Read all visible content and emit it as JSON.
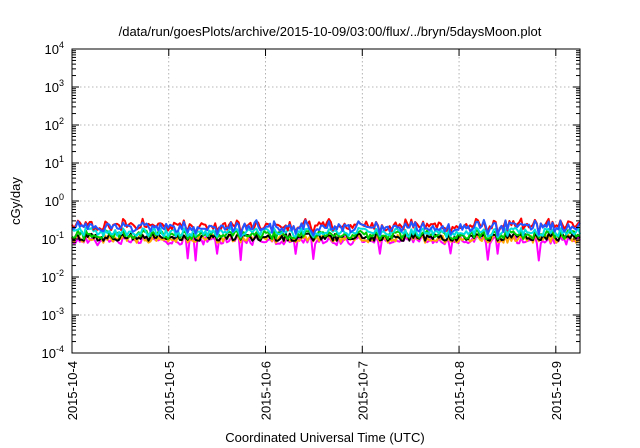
{
  "chart_data": {
    "type": "line",
    "title": "/data/run/goesPlots/archive/2015-10-09/03:00/flux/../bryn/5daysMoon.plot",
    "xlabel": "Coordinated Universal Time (UTC)",
    "ylabel": "cGy/day",
    "yscale": "log",
    "ylim": [
      0.0001,
      10000
    ],
    "xlim": [
      "2015-10-04",
      "2015-10-09 06:00"
    ],
    "grid": true,
    "x_ticks": [
      "2015-10-4",
      "2015-10-5",
      "2015-10-6",
      "2015-10-7",
      "2015-10-8",
      "2015-10-9"
    ],
    "y_ticks": [
      {
        "base": "10",
        "exp": "-4"
      },
      {
        "base": "10",
        "exp": "-3"
      },
      {
        "base": "10",
        "exp": "-2"
      },
      {
        "base": "10",
        "exp": "-1"
      },
      {
        "base": "10",
        "exp": "0"
      },
      {
        "base": "10",
        "exp": "1"
      },
      {
        "base": "10",
        "exp": "2"
      },
      {
        "base": "10",
        "exp": "3"
      },
      {
        "base": "10",
        "exp": "4"
      }
    ],
    "series": [
      {
        "color": "#ff00ff",
        "typical": 0.09,
        "min": 0.025,
        "max": 0.12
      },
      {
        "color": "#ffaa00",
        "typical": 0.1,
        "min": 0.08,
        "max": 0.13
      },
      {
        "color": "#000000",
        "typical": 0.11,
        "min": 0.09,
        "max": 0.14
      },
      {
        "color": "#00cc00",
        "typical": 0.13,
        "min": 0.1,
        "max": 0.17
      },
      {
        "color": "#00dddd",
        "typical": 0.15,
        "min": 0.11,
        "max": 0.2
      },
      {
        "color": "#ff0000",
        "typical": 0.22,
        "min": 0.14,
        "max": 0.35
      },
      {
        "color": "#2255ff",
        "typical": 0.2,
        "min": 0.12,
        "max": 0.32
      }
    ]
  }
}
